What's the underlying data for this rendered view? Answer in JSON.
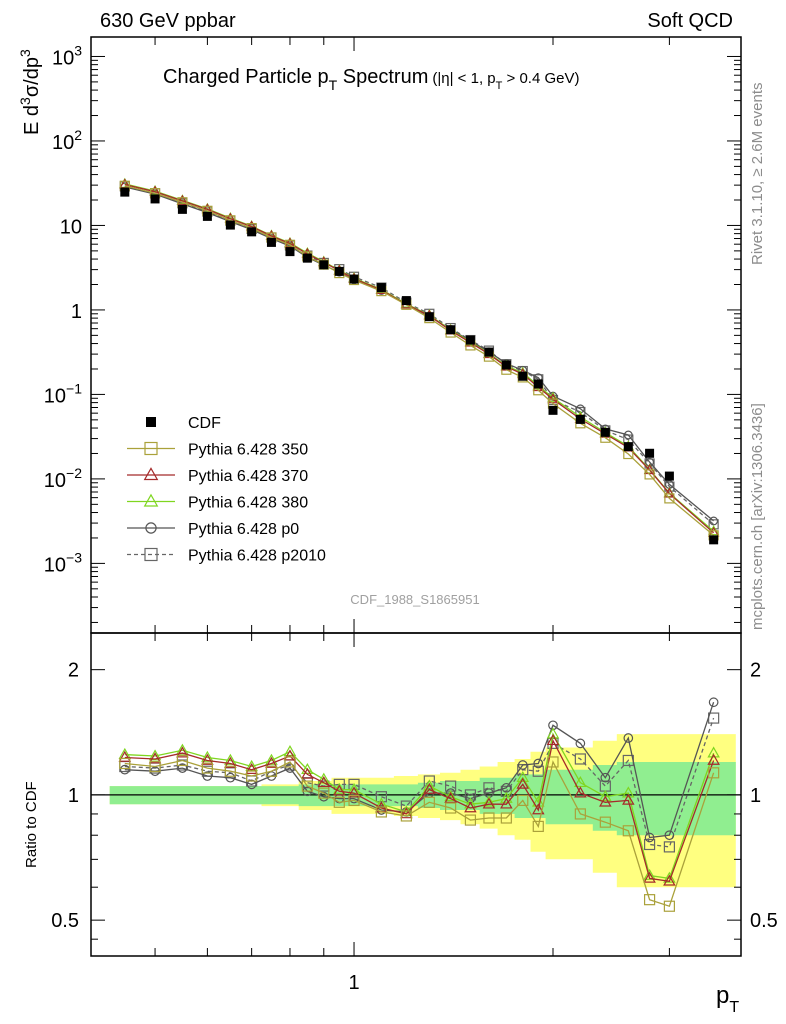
{
  "header": {
    "left": "630 GeV ppbar",
    "right": "Soft QCD"
  },
  "side_labels": {
    "top": "Rivet 3.1.10, ≥ 2.6M events",
    "bottom": "mcplots.cern.ch [arXiv:1306.3436]"
  },
  "analysis_tag": "CDF_1988_S1865951",
  "chart_data": [
    {
      "type": "line",
      "title": "Charged Particle pT Spectrum (|η| < 1, pT > 0.4 GeV)",
      "title_main": "Charged Particle p",
      "title_sub": "T",
      "title_main2": " Spectrum",
      "title_cuts": "(|η| < 1, p",
      "title_cuts_sub": "T",
      "title_cuts_end": " > 0.4 GeV)",
      "ylabel": "E d³σ/dp³",
      "xlabel": "pT",
      "xscale": "log",
      "yscale": "log",
      "xlim": [
        0.4,
        3.85
      ],
      "ylim": [
        0.00015,
        1700
      ],
      "yticks": [
        {
          "v": 0.001,
          "b": "10",
          "e": "−3"
        },
        {
          "v": 0.01,
          "b": "10",
          "e": "−2"
        },
        {
          "v": 0.1,
          "b": "10",
          "e": "−1"
        },
        {
          "v": 1,
          "b": "1",
          "e": ""
        },
        {
          "v": 10,
          "b": "10",
          "e": ""
        },
        {
          "v": 100,
          "b": "10",
          "e": "2"
        },
        {
          "v": 1000,
          "b": "10",
          "e": "3"
        }
      ],
      "legend_position": "left-lower",
      "x": [
        0.45,
        0.5,
        0.55,
        0.6,
        0.65,
        0.7,
        0.75,
        0.8,
        0.85,
        0.9,
        0.95,
        1.0,
        1.1,
        1.2,
        1.3,
        1.4,
        1.5,
        1.6,
        1.7,
        1.8,
        1.9,
        2.0,
        2.2,
        2.4,
        2.6,
        2.8,
        3.0,
        3.5
      ],
      "series": [
        {
          "name": "CDF",
          "color": "#000000",
          "marker": "filled-square",
          "line": "none",
          "values": [
            24.8,
            20.6,
            15.5,
            12.8,
            10.1,
            8.4,
            6.3,
            4.9,
            4.1,
            3.42,
            2.86,
            2.32,
            1.84,
            1.29,
            0.832,
            0.583,
            0.44,
            0.317,
            0.223,
            0.164,
            0.133,
            0.0648,
            0.0506,
            0.0356,
            0.0241,
            0.0201,
            0.0108,
            0.0019
          ]
        },
        {
          "name": "Pythia 6.428 350",
          "color": "#aaa13a",
          "marker": "open-square",
          "line": "solid",
          "values": [
            29.5,
            24.1,
            18.8,
            14.9,
            11.5,
            9.3,
            7.2,
            5.9,
            4.3,
            3.44,
            2.73,
            2.26,
            1.67,
            1.15,
            0.8,
            0.54,
            0.38,
            0.28,
            0.196,
            0.159,
            0.112,
            0.0778,
            0.0455,
            0.0307,
            0.0197,
            0.0113,
            0.00588,
            0.00215
          ]
        },
        {
          "name": "Pythia 6.428 370",
          "color": "#a52a2a",
          "marker": "open-triangle",
          "line": "solid",
          "values": [
            30.5,
            25.1,
            19.5,
            15.5,
            12.0,
            9.7,
            7.5,
            6.1,
            4.6,
            3.66,
            2.91,
            2.34,
            1.72,
            1.16,
            0.856,
            0.57,
            0.41,
            0.3,
            0.213,
            0.174,
            0.122,
            0.0875,
            0.0512,
            0.0342,
            0.0235,
            0.0127,
            0.0067,
            0.0023
          ]
        },
        {
          "name": "Pythia 6.428 380",
          "color": "#7fd620",
          "marker": "open-triangle",
          "line": "solid",
          "values": [
            31.0,
            25.5,
            19.8,
            15.7,
            12.2,
            9.8,
            7.6,
            6.2,
            4.7,
            3.72,
            2.95,
            2.38,
            1.75,
            1.18,
            0.87,
            0.58,
            0.42,
            0.305,
            0.218,
            0.18,
            0.127,
            0.091,
            0.054,
            0.0354,
            0.0243,
            0.0129,
            0.0068,
            0.0024
          ]
        },
        {
          "name": "Pythia 6.428 p0",
          "color": "#555555",
          "marker": "open-circle",
          "line": "solid",
          "values": [
            28.5,
            23.5,
            18.0,
            14.2,
            11.1,
            8.9,
            7.0,
            5.7,
            4.2,
            3.38,
            2.8,
            2.27,
            1.7,
            1.17,
            0.84,
            0.59,
            0.43,
            0.32,
            0.232,
            0.193,
            0.158,
            0.0955,
            0.0675,
            0.0391,
            0.0331,
            0.0158,
            0.0086,
            0.00318
          ]
        },
        {
          "name": "Pythia 6.428 p2010",
          "color": "#666666",
          "marker": "open-square",
          "line": "dashed",
          "values": [
            29.0,
            24.0,
            18.3,
            14.6,
            11.4,
            9.1,
            7.2,
            5.8,
            4.4,
            3.6,
            3.04,
            2.47,
            1.84,
            1.22,
            0.9,
            0.61,
            0.44,
            0.33,
            0.228,
            0.189,
            0.151,
            0.086,
            0.062,
            0.0375,
            0.0292,
            0.0152,
            0.0081,
            0.0029
          ]
        }
      ]
    },
    {
      "type": "line",
      "ylabel": "Ratio to CDF",
      "xlabel": "pT",
      "xscale": "log",
      "yscale": "log",
      "xlim": [
        0.4,
        3.85
      ],
      "ylim": [
        0.41,
        2.45
      ],
      "yticks": [
        {
          "v": 0.5,
          "label": "0.5"
        },
        {
          "v": 1,
          "label": "1"
        },
        {
          "v": 2,
          "label": "2"
        }
      ],
      "xticks": [
        {
          "v": 1,
          "label": "1"
        }
      ],
      "band_inner_color": "#90ee90",
      "band_outer_color": "#ffff80",
      "band_inner": [
        0.05,
        0.05,
        0.05,
        0.05,
        0.05,
        0.05,
        0.05,
        0.05,
        0.06,
        0.06,
        0.06,
        0.06,
        0.06,
        0.06,
        0.07,
        0.08,
        0.08,
        0.1,
        0.1,
        0.12,
        0.12,
        0.15,
        0.15,
        0.18,
        0.2,
        0.2,
        0.2,
        0.2
      ],
      "band_outer": [
        0.05,
        0.05,
        0.05,
        0.05,
        0.05,
        0.05,
        0.06,
        0.06,
        0.08,
        0.08,
        0.1,
        0.1,
        0.1,
        0.11,
        0.12,
        0.13,
        0.15,
        0.17,
        0.2,
        0.22,
        0.27,
        0.3,
        0.3,
        0.35,
        0.4,
        0.4,
        0.4,
        0.4
      ],
      "series": [
        {
          "name": "Pythia 6.428 350",
          "values": [
            1.19,
            1.17,
            1.21,
            1.16,
            1.14,
            1.11,
            1.14,
            1.2,
            1.05,
            1.01,
            0.96,
            0.97,
            0.91,
            0.89,
            0.96,
            0.93,
            0.87,
            0.88,
            0.88,
            0.97,
            0.84,
            1.2,
            0.9,
            0.86,
            0.82,
            0.56,
            0.54,
            1.13
          ]
        },
        {
          "name": "Pythia 6.428 370",
          "values": [
            1.23,
            1.22,
            1.26,
            1.21,
            1.19,
            1.15,
            1.19,
            1.24,
            1.12,
            1.07,
            1.02,
            1.01,
            0.93,
            0.9,
            1.03,
            0.98,
            0.93,
            0.95,
            0.95,
            1.06,
            0.92,
            1.35,
            1.01,
            0.96,
            0.97,
            0.63,
            0.62,
            1.21
          ]
        },
        {
          "name": "Pythia 6.428 380",
          "values": [
            1.25,
            1.24,
            1.28,
            1.23,
            1.21,
            1.17,
            1.21,
            1.27,
            1.15,
            1.09,
            1.03,
            1.03,
            0.95,
            0.91,
            1.05,
            0.99,
            0.95,
            0.96,
            0.98,
            1.1,
            0.96,
            1.4,
            1.07,
            0.99,
            1.01,
            0.64,
            0.63,
            1.26
          ]
        },
        {
          "name": "Pythia 6.428 p0",
          "values": [
            1.15,
            1.14,
            1.16,
            1.11,
            1.1,
            1.06,
            1.11,
            1.16,
            1.02,
            0.99,
            0.98,
            0.98,
            0.92,
            0.91,
            1.01,
            1.01,
            0.98,
            1.01,
            1.04,
            1.18,
            1.19,
            1.47,
            1.33,
            1.1,
            1.37,
            0.79,
            0.8,
            1.67
          ]
        },
        {
          "name": "Pythia 6.428 p2010",
          "values": [
            1.17,
            1.16,
            1.18,
            1.14,
            1.13,
            1.08,
            1.14,
            1.18,
            1.07,
            1.05,
            1.06,
            1.06,
            0.99,
            0.94,
            1.08,
            1.05,
            1.0,
            1.04,
            1.02,
            1.15,
            1.14,
            1.33,
            1.22,
            1.05,
            1.21,
            0.76,
            0.75,
            1.53
          ]
        }
      ]
    }
  ]
}
